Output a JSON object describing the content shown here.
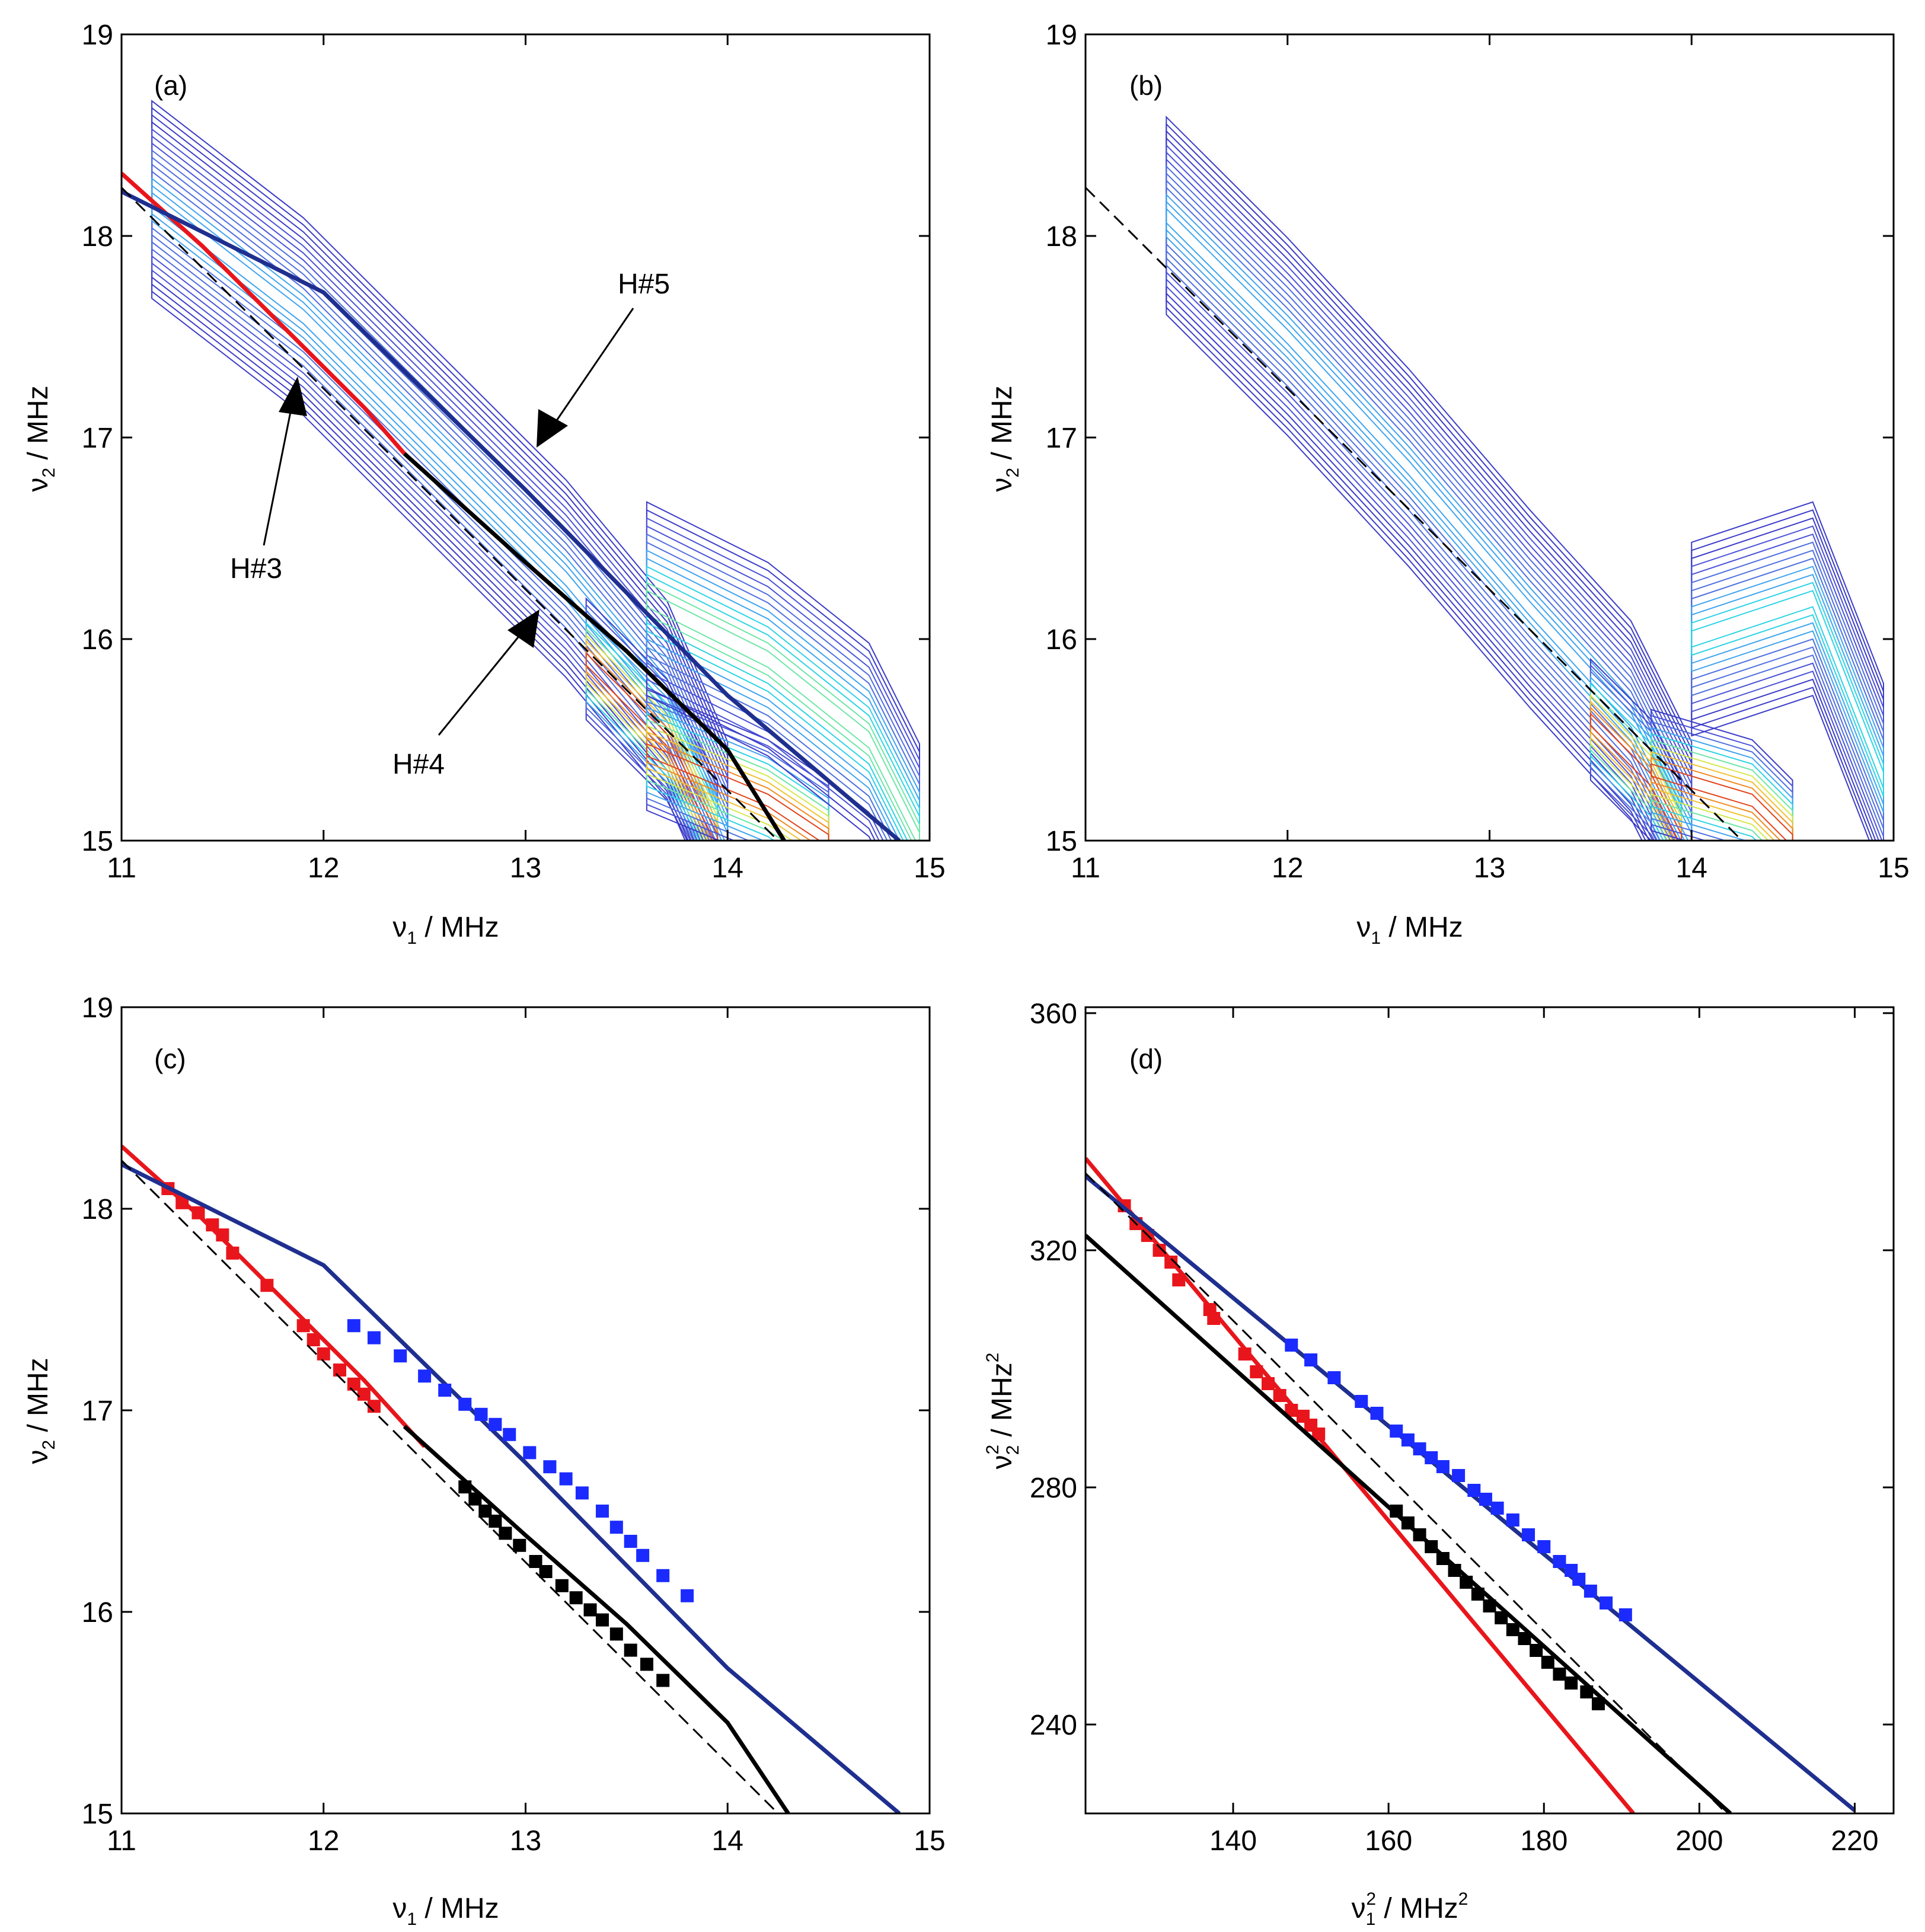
{
  "figure": {
    "panels": [
      {
        "tag": "(a)",
        "xlabel_main": "ν",
        "xlabel_sub": "1",
        "xlabel_unit": " / MHz",
        "ylabel_main": "ν",
        "ylabel_sub": "2",
        "ylabel_unit": " / MHz"
      },
      {
        "tag": "(b)",
        "xlabel_main": "ν",
        "xlabel_sub": "1",
        "xlabel_unit": " / MHz",
        "ylabel_main": "ν",
        "ylabel_sub": "2",
        "ylabel_unit": " / MHz"
      },
      {
        "tag": "(c)",
        "xlabel_main": "ν",
        "xlabel_sub": "1",
        "xlabel_unit": " / MHz",
        "ylabel_main": "ν",
        "ylabel_sub": "2",
        "ylabel_unit": " / MHz"
      },
      {
        "tag": "(d)",
        "xlabel_main": "ν",
        "xlabel_sub": "1",
        "xlabel_sup": "2",
        "xlabel_unit": " / MHz",
        "xlabel_unit_sup": "2",
        "ylabel_main": "ν",
        "ylabel_sub": "2",
        "ylabel_sup": "2",
        "ylabel_unit": " / MHz",
        "ylabel_unit_sup": "2"
      }
    ],
    "annotations": {
      "h3": "H#3",
      "h4": "H#4",
      "h5": "H#5"
    }
  },
  "chart_data": [
    {
      "panel": "a",
      "type": "contour-2d-spectrum",
      "title": "(a)",
      "xlabel": "ν1 / MHz",
      "ylabel": "ν2 / MHz",
      "xlim": [
        11,
        15
      ],
      "ylim": [
        15,
        19
      ],
      "xticks": [
        11,
        12,
        13,
        14,
        15
      ],
      "yticks": [
        15,
        16,
        17,
        18,
        19
      ],
      "curves": [
        {
          "name": "H#3 fit",
          "color": "#e8161c",
          "points": [
            [
              11.0,
              18.31
            ],
            [
              11.4,
              17.95
            ],
            [
              11.8,
              17.55
            ],
            [
              12.2,
              17.15
            ],
            [
              12.4,
              16.92
            ]
          ]
        },
        {
          "name": "H#4 fit",
          "color": "#000000",
          "points": [
            [
              12.4,
              16.92
            ],
            [
              13.0,
              16.38
            ],
            [
              13.5,
              15.94
            ],
            [
              14.0,
              15.45
            ],
            [
              14.28,
              15.0
            ]
          ]
        },
        {
          "name": "H#5 fit",
          "color": "#1f2f8f",
          "points": [
            [
              11.0,
              18.22
            ],
            [
              12.0,
              17.72
            ],
            [
              13.0,
              16.74
            ],
            [
              14.0,
              15.72
            ],
            [
              14.85,
              15.0
            ]
          ]
        },
        {
          "name": "diagonal",
          "color": "#000000",
          "dashed": true,
          "points": [
            [
              11.0,
              18.24
            ],
            [
              14.25,
              15.0
            ]
          ]
        }
      ],
      "annotations": [
        "H#3",
        "H#4",
        "H#5"
      ]
    },
    {
      "panel": "b",
      "type": "contour-2d-spectrum",
      "title": "(b)",
      "xlabel": "ν1 / MHz",
      "ylabel": "ν2 / MHz",
      "xlim": [
        11,
        15
      ],
      "ylim": [
        15,
        19
      ],
      "xticks": [
        11,
        12,
        13,
        14,
        15
      ],
      "yticks": [
        15,
        16,
        17,
        18,
        19
      ],
      "curves": [
        {
          "name": "diagonal",
          "color": "#000000",
          "dashed": true,
          "points": [
            [
              11.0,
              18.24
            ],
            [
              14.25,
              15.0
            ]
          ]
        }
      ]
    },
    {
      "panel": "c",
      "type": "line",
      "title": "(c)",
      "xlabel": "ν1 / MHz",
      "ylabel": "ν2 / MHz",
      "xlim": [
        11,
        15
      ],
      "ylim": [
        15,
        19
      ],
      "xticks": [
        11,
        12,
        13,
        14,
        15
      ],
      "yticks": [
        15,
        16,
        17,
        18,
        19
      ],
      "series": [
        {
          "name": "H#3",
          "color": "#e8161c",
          "fit": [
            [
              11.0,
              18.31
            ],
            [
              11.4,
              17.95
            ],
            [
              11.8,
              17.55
            ],
            [
              12.2,
              17.15
            ],
            [
              12.5,
              16.82
            ]
          ],
          "points": [
            [
              11.23,
              18.1
            ],
            [
              11.3,
              18.03
            ],
            [
              11.38,
              17.98
            ],
            [
              11.45,
              17.92
            ],
            [
              11.5,
              17.87
            ],
            [
              11.55,
              17.78
            ],
            [
              11.72,
              17.62
            ],
            [
              11.9,
              17.42
            ],
            [
              11.95,
              17.35
            ],
            [
              12.0,
              17.28
            ],
            [
              12.08,
              17.2
            ],
            [
              12.15,
              17.13
            ],
            [
              12.2,
              17.08
            ],
            [
              12.25,
              17.02
            ]
          ]
        },
        {
          "name": "H#4",
          "color": "#000000",
          "fit": [
            [
              12.4,
              16.92
            ],
            [
              13.0,
              16.38
            ],
            [
              13.5,
              15.94
            ],
            [
              14.0,
              15.45
            ],
            [
              14.3,
              15.0
            ]
          ],
          "points": [
            [
              12.7,
              16.62
            ],
            [
              12.75,
              16.56
            ],
            [
              12.8,
              16.5
            ],
            [
              12.85,
              16.45
            ],
            [
              12.9,
              16.39
            ],
            [
              12.97,
              16.33
            ],
            [
              13.05,
              16.25
            ],
            [
              13.1,
              16.2
            ],
            [
              13.18,
              16.13
            ],
            [
              13.25,
              16.07
            ],
            [
              13.32,
              16.01
            ],
            [
              13.38,
              15.96
            ],
            [
              13.45,
              15.89
            ],
            [
              13.52,
              15.81
            ],
            [
              13.6,
              15.74
            ],
            [
              13.68,
              15.66
            ]
          ]
        },
        {
          "name": "H#5",
          "color": "#1f2f8f",
          "marker_color": "#1b2bff",
          "fit": [
            [
              11.0,
              18.22
            ],
            [
              12.0,
              17.72
            ],
            [
              13.0,
              16.74
            ],
            [
              14.0,
              15.72
            ],
            [
              14.85,
              15.0
            ]
          ],
          "points": [
            [
              12.15,
              17.42
            ],
            [
              12.25,
              17.36
            ],
            [
              12.38,
              17.27
            ],
            [
              12.5,
              17.17
            ],
            [
              12.6,
              17.1
            ],
            [
              12.7,
              17.03
            ],
            [
              12.78,
              16.98
            ],
            [
              12.85,
              16.93
            ],
            [
              12.92,
              16.88
            ],
            [
              13.02,
              16.79
            ],
            [
              13.12,
              16.72
            ],
            [
              13.2,
              16.66
            ],
            [
              13.28,
              16.59
            ],
            [
              13.38,
              16.5
            ],
            [
              13.45,
              16.42
            ],
            [
              13.52,
              16.35
            ],
            [
              13.58,
              16.28
            ],
            [
              13.68,
              16.18
            ],
            [
              13.8,
              16.08
            ]
          ]
        },
        {
          "name": "diagonal",
          "color": "#000000",
          "dashed": true,
          "fit": [
            [
              11.0,
              18.24
            ],
            [
              14.25,
              15.0
            ]
          ],
          "points": []
        }
      ]
    },
    {
      "panel": "d",
      "type": "line",
      "title": "(d)",
      "xlabel": "ν1² / MHz²",
      "ylabel": "ν2² / MHz²",
      "xlim": [
        121,
        225
      ],
      "ylim": [
        225,
        361
      ],
      "xticks": [
        140,
        160,
        180,
        200,
        220
      ],
      "yticks": [
        240,
        280,
        320,
        360
      ],
      "series": [
        {
          "name": "H#3",
          "color": "#e8161c",
          "fit": [
            [
              121,
              335.5
            ],
            [
              191.5,
              225.0
            ]
          ],
          "points": [
            [
              126,
              327.5
            ],
            [
              127.5,
              324.5
            ],
            [
              129,
              322.5
            ],
            [
              130.5,
              320.0
            ],
            [
              132,
              318.0
            ],
            [
              133,
              315.0
            ],
            [
              137,
              310.0
            ],
            [
              137.5,
              308.5
            ],
            [
              141.5,
              302.5
            ],
            [
              143,
              299.5
            ],
            [
              144.5,
              297.5
            ],
            [
              146,
              295.5
            ],
            [
              147.5,
              293.0
            ],
            [
              149,
              292.0
            ],
            [
              150,
              290.5
            ],
            [
              151,
              289.0
            ]
          ]
        },
        {
          "name": "H#4",
          "color": "#000000",
          "fit": [
            [
              121,
              322.5
            ],
            [
              204,
              225.0
            ]
          ],
          "points": [
            [
              161,
              276.0
            ],
            [
              162.5,
              274.0
            ],
            [
              164,
              272.0
            ],
            [
              165.5,
              270.0
            ],
            [
              167,
              268.0
            ],
            [
              168.5,
              266.0
            ],
            [
              170,
              264.0
            ],
            [
              171.5,
              262.0
            ],
            [
              173,
              260.0
            ],
            [
              174.5,
              258.0
            ],
            [
              176,
              256.0
            ],
            [
              177.5,
              254.5
            ],
            [
              179,
              252.5
            ],
            [
              180.5,
              250.5
            ],
            [
              182,
              248.5
            ],
            [
              183.5,
              247.0
            ],
            [
              185.5,
              245.5
            ],
            [
              187,
              243.5
            ]
          ]
        },
        {
          "name": "H#5",
          "color": "#1f2f8f",
          "marker_color": "#1b2bff",
          "fit": [
            [
              121,
              332.5
            ],
            [
              220,
              225.5
            ]
          ],
          "points": [
            [
              147.5,
              304.0
            ],
            [
              150,
              301.5
            ],
            [
              153,
              298.5
            ],
            [
              156.5,
              294.5
            ],
            [
              158.5,
              292.5
            ],
            [
              161,
              289.5
            ],
            [
              162.5,
              288.0
            ],
            [
              164,
              286.5
            ],
            [
              165.5,
              285.0
            ],
            [
              167,
              283.5
            ],
            [
              169,
              282.0
            ],
            [
              171,
              279.5
            ],
            [
              172.5,
              278.0
            ],
            [
              174,
              276.5
            ],
            [
              176,
              274.5
            ],
            [
              178,
              272.0
            ],
            [
              180,
              270.0
            ],
            [
              182,
              267.5
            ],
            [
              183.5,
              266.0
            ],
            [
              184.5,
              264.5
            ],
            [
              186,
              262.5
            ],
            [
              188,
              260.5
            ],
            [
              190.5,
              258.5
            ]
          ]
        },
        {
          "name": "diagonal",
          "color": "#000000",
          "dashed": true,
          "fit": [
            [
              121,
              333.0
            ],
            [
              203.5,
              225.0
            ]
          ],
          "points": []
        }
      ]
    }
  ]
}
